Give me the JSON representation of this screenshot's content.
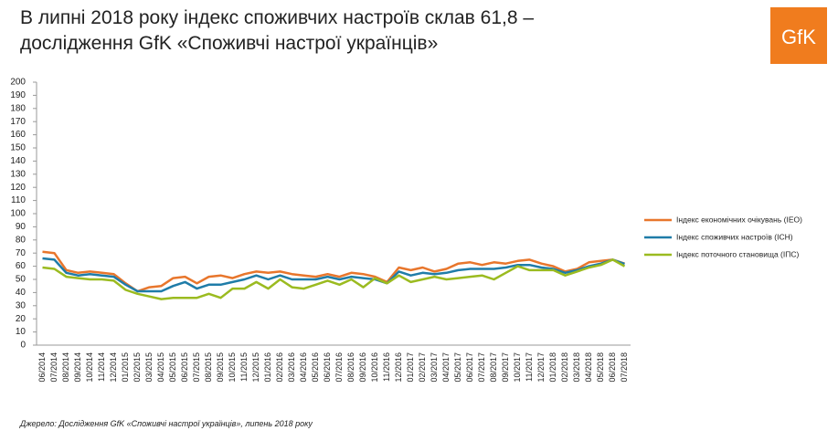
{
  "chart_data": {
    "type": "line",
    "title": "В липні 2018 року індекс споживчих настроїв склав 61,8 –",
    "subtitle": "дослідження GfK «Споживчі настрої українців»",
    "logo": "GfK",
    "source": "Джерело: Дослідження GfK «Споживчі настрої українців», липень 2018 року",
    "categories": [
      "06/2014",
      "07/2014",
      "08/2014",
      "09/2014",
      "10/2014",
      "11/2014",
      "12/2014",
      "01/2015",
      "02/2015",
      "03/2015",
      "04/2015",
      "05/2015",
      "06/2015",
      "07/2015",
      "08/2015",
      "09/2015",
      "10/2015",
      "11/2015",
      "12/2015",
      "01/2016",
      "02/2016",
      "03/2016",
      "04/2016",
      "05/2016",
      "06/2016",
      "07/2016",
      "08/2016",
      "09/2016",
      "10/2016",
      "11/2016",
      "12/2016",
      "01/2017",
      "02/2017",
      "03/2017",
      "04/2017",
      "05/2017",
      "06/2017",
      "07/2017",
      "08/2017",
      "09/2017",
      "10/2017",
      "11/2017",
      "12/2017",
      "01/2018",
      "02/2018",
      "03/2018",
      "04/2018",
      "05/2018",
      "06/2018",
      "07/2018"
    ],
    "series": [
      {
        "name": "Індекс економічних очікувань (ІЕО)",
        "color": "#e8762c",
        "values": [
          71,
          70,
          57,
          55,
          56,
          55,
          54,
          47,
          41,
          44,
          45,
          51,
          52,
          47,
          52,
          53,
          51,
          54,
          56,
          55,
          56,
          54,
          53,
          52,
          54,
          52,
          55,
          54,
          52,
          48,
          59,
          57,
          59,
          56,
          58,
          62,
          63,
          61,
          63,
          62,
          64,
          65,
          62,
          60,
          56,
          58,
          63,
          64,
          65,
          62
        ]
      },
      {
        "name": "Індекс споживчих настроїв (ІСН)",
        "color": "#1f7ca8",
        "values": [
          66,
          65,
          55,
          53,
          54,
          53,
          52,
          46,
          41,
          41,
          41,
          45,
          48,
          43,
          46,
          46,
          48,
          50,
          53,
          50,
          53,
          50,
          50,
          50,
          52,
          50,
          52,
          51,
          50,
          47,
          56,
          53,
          55,
          54,
          55,
          57,
          58,
          58,
          58,
          59,
          61,
          61,
          59,
          58,
          55,
          57,
          60,
          62,
          65,
          61.8
        ]
      },
      {
        "name": "Індекс поточного  становища (ІПС)",
        "color": "#9bbb20",
        "values": [
          59,
          58,
          52,
          51,
          50,
          50,
          49,
          42,
          39,
          37,
          35,
          36,
          36,
          36,
          39,
          36,
          43,
          43,
          48,
          43,
          50,
          44,
          43,
          46,
          49,
          46,
          50,
          44,
          51,
          47,
          53,
          48,
          50,
          52,
          50,
          51,
          52,
          53,
          50,
          55,
          60,
          57,
          57,
          57,
          53,
          56,
          59,
          61,
          65,
          60
        ]
      }
    ],
    "ylim": [
      0,
      200
    ],
    "yticks": [
      0,
      10,
      20,
      30,
      40,
      50,
      60,
      70,
      80,
      90,
      100,
      110,
      120,
      130,
      140,
      150,
      160,
      170,
      180,
      190,
      200
    ],
    "grid": false,
    "legend": "right"
  }
}
